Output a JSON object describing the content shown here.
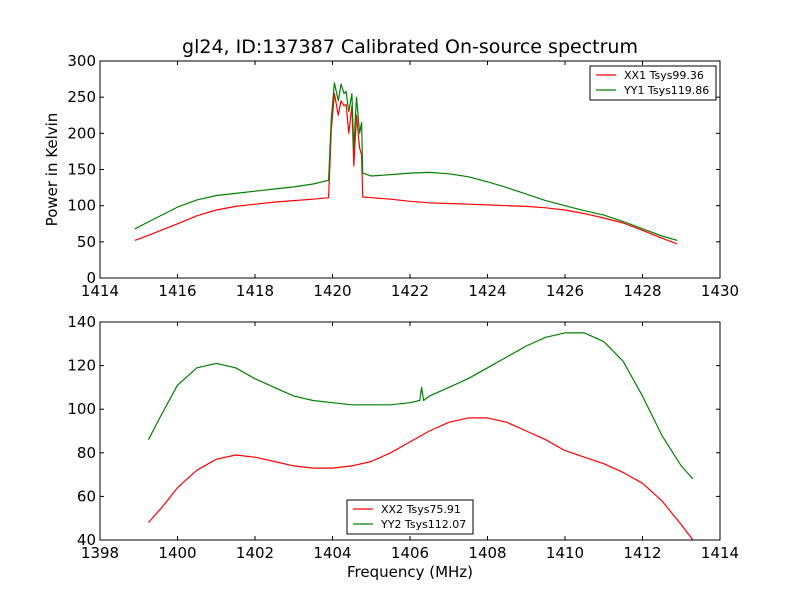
{
  "title": "gl24, ID:137387 Calibrated On-source spectrum",
  "colors": {
    "red": "#ff0000",
    "green": "#008000"
  },
  "chart_data": [
    {
      "type": "line",
      "title": "gl24, ID:137387 Calibrated On-source spectrum",
      "xlabel": "",
      "ylabel": "Power in Kelvin",
      "xlim": [
        1414,
        1430
      ],
      "ylim": [
        0,
        300
      ],
      "xticks": [
        "1414",
        "1416",
        "1418",
        "1420",
        "1422",
        "1424",
        "1426",
        "1428",
        "1430"
      ],
      "yticks": [
        "0",
        "50",
        "100",
        "150",
        "200",
        "250",
        "300"
      ],
      "legend_position": "top-right",
      "series": [
        {
          "name": "XX1 Tsys99.36",
          "color": "#ff0000",
          "x": [
            1414.9,
            1415.3,
            1416.0,
            1416.5,
            1417.0,
            1417.5,
            1418.0,
            1418.5,
            1419.0,
            1419.5,
            1419.9,
            1419.97,
            1420.05,
            1420.15,
            1420.22,
            1420.3,
            1420.35,
            1420.42,
            1420.5,
            1420.55,
            1420.62,
            1420.7,
            1420.75,
            1420.78,
            1421.0,
            1421.5,
            1422.0,
            1422.5,
            1423.0,
            1423.5,
            1424.0,
            1424.5,
            1425.0,
            1425.5,
            1426.0,
            1426.5,
            1427.0,
            1427.5,
            1428.0,
            1428.5,
            1428.9
          ],
          "y": [
            52,
            60,
            75,
            86,
            94,
            99,
            102,
            105,
            107,
            109,
            111,
            205,
            255,
            225,
            245,
            238,
            240,
            200,
            238,
            155,
            225,
            180,
            170,
            112,
            111,
            109,
            106,
            104,
            103,
            102,
            101,
            100,
            99,
            97,
            94,
            89,
            83,
            76,
            66,
            55,
            47
          ]
        },
        {
          "name": "YY1 Tsys119.86",
          "color": "#008000",
          "x": [
            1414.9,
            1415.3,
            1416.0,
            1416.5,
            1417.0,
            1417.5,
            1418.0,
            1418.5,
            1419.0,
            1419.5,
            1419.9,
            1419.97,
            1420.05,
            1420.15,
            1420.22,
            1420.3,
            1420.35,
            1420.42,
            1420.5,
            1420.55,
            1420.62,
            1420.7,
            1420.75,
            1420.78,
            1421.0,
            1421.5,
            1422.0,
            1422.5,
            1423.0,
            1423.5,
            1424.0,
            1424.5,
            1425.0,
            1425.5,
            1426.0,
            1426.5,
            1427.0,
            1427.5,
            1428.0,
            1428.5,
            1428.9
          ],
          "y": [
            68,
            79,
            98,
            108,
            114,
            117,
            120,
            123,
            126,
            130,
            135,
            220,
            270,
            245,
            268,
            255,
            258,
            230,
            255,
            178,
            250,
            200,
            215,
            145,
            141,
            143,
            145,
            146,
            144,
            140,
            133,
            125,
            116,
            107,
            100,
            93,
            87,
            78,
            68,
            58,
            52
          ]
        }
      ]
    },
    {
      "type": "line",
      "title": "",
      "xlabel": "Frequency (MHz)",
      "ylabel": "",
      "xlim": [
        1398,
        1414
      ],
      "ylim": [
        40,
        140
      ],
      "xticks": [
        "1398",
        "1400",
        "1402",
        "1404",
        "1406",
        "1408",
        "1410",
        "1412",
        "1414"
      ],
      "yticks": [
        "40",
        "60",
        "80",
        "100",
        "120",
        "140"
      ],
      "legend_position": "bottom-center",
      "series": [
        {
          "name": "XX2 Tsys75.91",
          "color": "#ff0000",
          "x": [
            1399.25,
            1399.6,
            1400.0,
            1400.5,
            1401.0,
            1401.5,
            1402.0,
            1402.5,
            1403.0,
            1403.5,
            1404.0,
            1404.5,
            1405.0,
            1405.5,
            1406.0,
            1406.5,
            1407.0,
            1407.5,
            1408.0,
            1408.5,
            1409.0,
            1409.5,
            1410.0,
            1410.5,
            1411.0,
            1411.5,
            1412.0,
            1412.5,
            1413.0,
            1413.3
          ],
          "y": [
            48,
            55,
            64,
            72,
            77,
            79,
            78,
            76,
            74,
            73,
            73,
            74,
            76,
            80,
            85,
            90,
            94,
            96,
            96,
            94,
            90,
            86,
            81,
            78,
            75,
            71,
            66,
            58,
            47,
            40
          ]
        },
        {
          "name": "YY2 Tsys112.07",
          "color": "#008000",
          "x": [
            1399.25,
            1399.6,
            1400.0,
            1400.5,
            1401.0,
            1401.5,
            1402.0,
            1402.5,
            1403.0,
            1403.5,
            1404.0,
            1404.5,
            1405.0,
            1405.5,
            1406.0,
            1406.25,
            1406.3,
            1406.35,
            1406.5,
            1407.0,
            1407.5,
            1408.0,
            1408.5,
            1409.0,
            1409.5,
            1410.0,
            1410.5,
            1411.0,
            1411.5,
            1412.0,
            1412.5,
            1413.0,
            1413.3
          ],
          "y": [
            86,
            98,
            111,
            119,
            121,
            119,
            114,
            110,
            106,
            104,
            103,
            102,
            102,
            102,
            103,
            104,
            110,
            104,
            106,
            110,
            114,
            119,
            124,
            129,
            133,
            135,
            135,
            131,
            122,
            106,
            88,
            74,
            68
          ]
        }
      ]
    }
  ]
}
